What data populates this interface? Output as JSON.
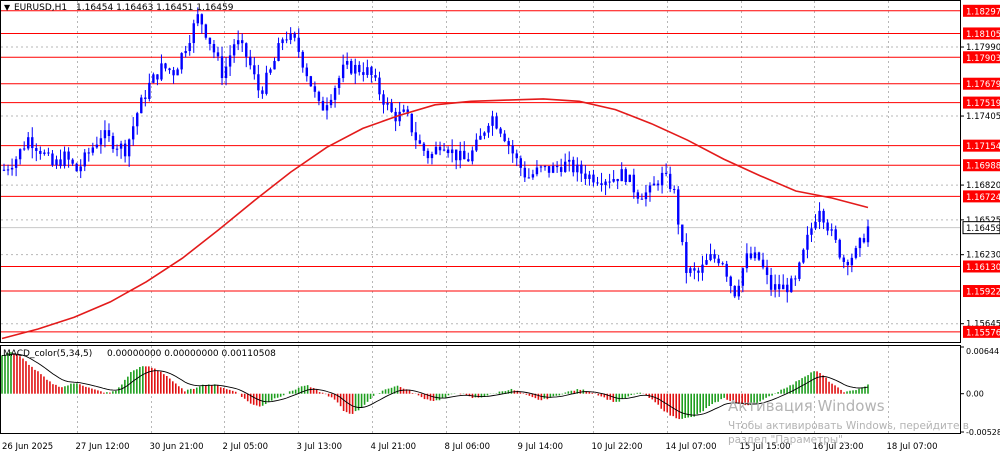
{
  "header": {
    "symbol_timeframe": "EURUSD,H1",
    "ohlc": "1.16454 1.16463 1.16451 1.16459"
  },
  "macd_header": {
    "label": "MACD_color(5,34,5)",
    "values": "0.00000000 0.00000000 0.00110508"
  },
  "watermark": {
    "line1": "Активация Windows",
    "line2": "Чтобы активировать Windows, перейдите в",
    "line3": "раздел \"Параметры\"."
  },
  "colors": {
    "level_line": "#ff0000",
    "ma_line": "#e31b1b",
    "candles": "#0000ff",
    "price_tag_bg": "#ff0000",
    "current_tag_bg": "#ffffff",
    "hist_up": "#1e9e1e",
    "hist_down": "#e01010",
    "signal": "#000000",
    "grid": "#b7b7b7"
  },
  "chart_data": [
    {
      "type": "line",
      "title": "EURUSD,H1",
      "y_range": [
        1.1549,
        1.1838
      ],
      "price_axis_ticks": [
        "1.17990",
        "1.17405",
        "1.16820",
        "1.16525",
        "1.16230",
        "1.15645"
      ],
      "current_price": "1.16459",
      "x_labels": [
        "26 Jun 2025",
        "27 Jun 12:00",
        "30 Jun 21:00",
        "2 Jul 05:00",
        "3 Jul 13:00",
        "4 Jul 21:00",
        "8 Jul 06:00",
        "9 Jul 14:00",
        "10 Jul 22:00",
        "14 Jul 07:00",
        "15 Jul 15:00",
        "16 Jul 23:00",
        "18 Jul 07:00"
      ],
      "horizontal_levels": [
        {
          "value": 1.18297,
          "label": "1.18297"
        },
        {
          "value": 1.18105,
          "label": "1.18105"
        },
        {
          "value": 1.17903,
          "label": "1.17903"
        },
        {
          "value": 1.17679,
          "label": "1.17679"
        },
        {
          "value": 1.17519,
          "label": "1.17519"
        },
        {
          "value": 1.17154,
          "label": "1.17154"
        },
        {
          "value": 1.16988,
          "label": "1.16988"
        },
        {
          "value": 1.16724,
          "label": "1.16724"
        },
        {
          "value": 1.1613,
          "label": "1.16130"
        },
        {
          "value": 1.15922,
          "label": "1.15922"
        },
        {
          "value": 1.15576,
          "label": "1.15576"
        }
      ],
      "price_path": [
        1.1695,
        1.1705,
        1.1722,
        1.1712,
        1.1698,
        1.1706,
        1.1694,
        1.171,
        1.1725,
        1.1718,
        1.1712,
        1.1745,
        1.1768,
        1.1782,
        1.1778,
        1.1802,
        1.1826,
        1.1802,
        1.1775,
        1.1805,
        1.179,
        1.176,
        1.178,
        1.181,
        1.1802,
        1.1774,
        1.1745,
        1.1762,
        1.1782,
        1.1781,
        1.1778,
        1.1758,
        1.174,
        1.1742,
        1.1718,
        1.1705,
        1.172,
        1.1708,
        1.1702,
        1.1718,
        1.1742,
        1.1727,
        1.1705,
        1.1688,
        1.1695,
        1.1695,
        1.17,
        1.1695,
        1.169,
        1.1688,
        1.1688,
        1.1692,
        1.1675,
        1.1675,
        1.169,
        1.168,
        1.161,
        1.1606,
        1.162,
        1.162,
        1.159,
        1.162,
        1.162,
        1.1595,
        1.1595,
        1.1598,
        1.1635,
        1.1665,
        1.164,
        1.1618,
        1.1624,
        1.1646
      ],
      "ma_path": [
        1.1552,
        1.156,
        1.157,
        1.1583,
        1.16,
        1.162,
        1.1644,
        1.1669,
        1.1693,
        1.1714,
        1.173,
        1.1741,
        1.175,
        1.1753,
        1.1754,
        1.1755,
        1.1753,
        1.1746,
        1.1734,
        1.172,
        1.1704,
        1.169,
        1.1677,
        1.1671,
        1.1663
      ],
      "ma_period_label": ""
    },
    {
      "type": "bar",
      "title": "MACD_color(5,34,5)",
      "y_range": [
        -0.00528,
        0.00644
      ],
      "axis_ticks": [
        "0.00644",
        "0.00",
        "-0.00528"
      ],
      "histogram": [
        0.0052,
        0.0058,
        0.0054,
        0.0046,
        0.0036,
        0.0028,
        0.0018,
        0.0012,
        0.0009,
        0.0013,
        0.0015,
        0.001,
        0.0006,
        0.0003,
        0.0001,
        0.0004,
        0.0016,
        0.003,
        0.0036,
        0.0038,
        0.0035,
        0.003,
        0.0022,
        0.0012,
        0.0004,
        0.0006,
        0.0011,
        0.0013,
        0.0012,
        0.0009,
        0.0005,
        0.0002,
        -0.0008,
        -0.0015,
        -0.0018,
        -0.0012,
        -0.0006,
        -0.0002,
        0.0003,
        0.0008,
        0.0012,
        0.0007,
        0.0002,
        -0.0003,
        -0.001,
        -0.0024,
        -0.0028,
        -0.0022,
        -0.0012,
        -0.0003,
        0.0004,
        0.0008,
        0.0011,
        0.0007,
        0.0002,
        -0.0004,
        -0.0008,
        -0.001,
        -0.0007,
        -0.0002,
        0.0001,
        -0.0002,
        -0.0006,
        -0.0005,
        -0.0002,
        0.0001,
        0.0004,
        0.0006,
        0.0003,
        -0.0002,
        -0.0006,
        -0.0009,
        -0.0006,
        -0.0003,
        0.0001,
        0.0004,
        0.0006,
        0.0004,
        0.0001,
        -0.0004,
        -0.0009,
        -0.0012,
        -0.0006,
        -0.0002,
        0.0002,
        -0.0004,
        -0.0012,
        -0.0022,
        -0.003,
        -0.0034,
        -0.0034,
        -0.0032,
        -0.0026,
        -0.0018,
        -0.0012,
        -0.0006,
        -0.001,
        -0.0014,
        -0.0016,
        -0.0014,
        -0.001,
        -0.0004,
        0.0002,
        0.0008,
        0.0012,
        0.002,
        0.0026,
        0.0032,
        0.0026,
        0.0016,
        0.0008,
        0.0002,
        0.0004,
        0.0008,
        0.0012
      ]
    }
  ]
}
